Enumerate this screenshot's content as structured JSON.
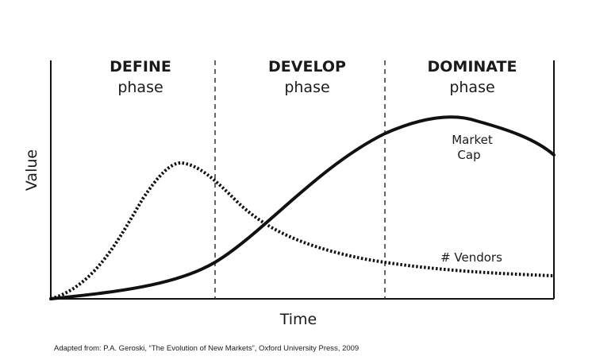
{
  "phases": [
    {
      "title": "DEFINE",
      "subtitle": "phase"
    },
    {
      "title": "DEVELOP",
      "subtitle": "phase"
    },
    {
      "title": "DOMINATE",
      "subtitle": "phase"
    }
  ],
  "axes": {
    "y_label": "Value",
    "x_label": "Time"
  },
  "curves": {
    "market_cap": {
      "label_line1": "Market",
      "label_line2": "Cap",
      "style": "solid",
      "color": "#111111"
    },
    "vendors": {
      "label": "# Vendors",
      "style": "dotted",
      "color": "#111111"
    }
  },
  "source_note": "Adapted from: P.A. Geroski, “The Evolution of New Markets”, Oxford University Press, 2009"
}
